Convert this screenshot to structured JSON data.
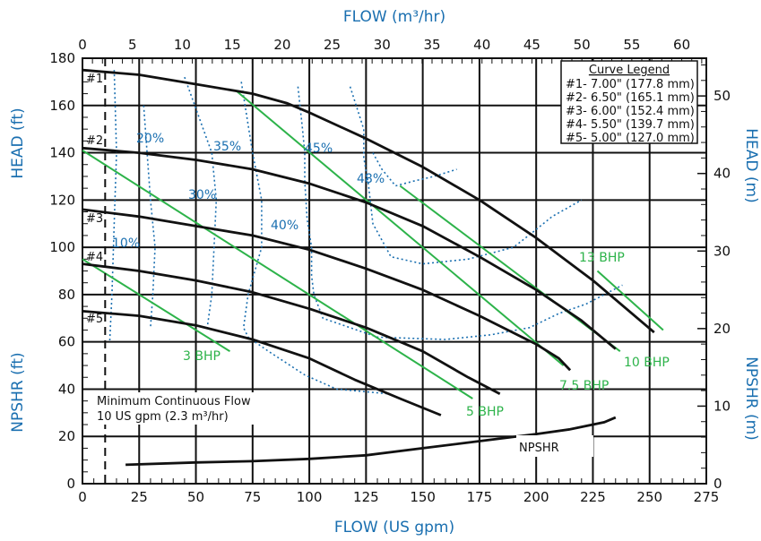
{
  "chart_data": {
    "type": "line",
    "title": "",
    "xlabel_top": "FLOW (m³/hr)",
    "xlabel_bottom": "FLOW (US gpm)",
    "ylabel_left_head": "HEAD (ft)",
    "ylabel_left_npshr": "NPSHR (ft)",
    "ylabel_right_head": "HEAD (m)",
    "ylabel_right_npshr": "NPSHR (m)",
    "xlim": [
      0,
      275
    ],
    "ylim": [
      0,
      180
    ],
    "x_ticks": [
      "0",
      "25",
      "50",
      "75",
      "100",
      "125",
      "150",
      "175",
      "200",
      "225",
      "250",
      "275"
    ],
    "y_ticks": [
      "0",
      "20",
      "40",
      "60",
      "80",
      "100",
      "120",
      "140",
      "160",
      "180"
    ],
    "x_top_ticks": [
      "0",
      "5",
      "10",
      "15",
      "20",
      "25",
      "30",
      "35",
      "40",
      "45",
      "50",
      "55",
      "60"
    ],
    "y_right_ticks": [
      "0",
      "10",
      "20",
      "30",
      "40",
      "50"
    ],
    "grid": true,
    "legend": {
      "title": "Curve Legend",
      "placement": "top-right",
      "entries": [
        "#1- 7.00\" (177.8 mm)",
        "#2- 6.50\" (165.1 mm)",
        "#3- 6.00\" (152.4 mm)",
        "#4- 5.50\" (139.7 mm)",
        "#5- 5.00\" (127.0 mm)"
      ]
    },
    "impeller_curves": [
      {
        "label": "#1",
        "points": [
          [
            0,
            175
          ],
          [
            25,
            173
          ],
          [
            50,
            169
          ],
          [
            75,
            165
          ],
          [
            90,
            161
          ],
          [
            100,
            157
          ],
          [
            125,
            146
          ],
          [
            150,
            134
          ],
          [
            175,
            120
          ],
          [
            200,
            104
          ],
          [
            225,
            86
          ],
          [
            252,
            64
          ]
        ]
      },
      {
        "label": "#2",
        "points": [
          [
            0,
            142
          ],
          [
            25,
            140
          ],
          [
            50,
            137
          ],
          [
            75,
            133
          ],
          [
            100,
            127
          ],
          [
            125,
            119
          ],
          [
            150,
            109
          ],
          [
            175,
            96
          ],
          [
            200,
            82
          ],
          [
            220,
            69
          ],
          [
            235,
            57
          ]
        ]
      },
      {
        "label": "#3",
        "points": [
          [
            0,
            116
          ],
          [
            25,
            113
          ],
          [
            50,
            109
          ],
          [
            75,
            105
          ],
          [
            100,
            99
          ],
          [
            125,
            91
          ],
          [
            150,
            82
          ],
          [
            175,
            71
          ],
          [
            200,
            59
          ],
          [
            210,
            53
          ],
          [
            215,
            48
          ]
        ]
      },
      {
        "label": "#4",
        "points": [
          [
            0,
            93
          ],
          [
            25,
            90
          ],
          [
            50,
            86
          ],
          [
            75,
            81
          ],
          [
            100,
            74
          ],
          [
            125,
            66
          ],
          [
            150,
            56
          ],
          [
            170,
            45
          ],
          [
            184,
            38
          ]
        ]
      },
      {
        "label": "#5",
        "points": [
          [
            0,
            73
          ],
          [
            25,
            71
          ],
          [
            50,
            67
          ],
          [
            75,
            61
          ],
          [
            100,
            53
          ],
          [
            120,
            44
          ],
          [
            140,
            36
          ],
          [
            158,
            29
          ]
        ]
      }
    ],
    "npshr_curve": {
      "label": "NPSHR",
      "points": [
        [
          19,
          8
        ],
        [
          50,
          9
        ],
        [
          75,
          9.5
        ],
        [
          100,
          10.5
        ],
        [
          125,
          12
        ],
        [
          150,
          15
        ],
        [
          175,
          18
        ],
        [
          200,
          21
        ],
        [
          215,
          23
        ],
        [
          230,
          26
        ],
        [
          235,
          28
        ]
      ]
    },
    "bhp_lines": [
      {
        "label": "3 BHP",
        "points": [
          [
            0,
            95
          ],
          [
            65,
            56
          ]
        ]
      },
      {
        "label": "5 BHP",
        "points": [
          [
            0,
            141
          ],
          [
            172,
            36
          ]
        ]
      },
      {
        "label": "7.5 BHP",
        "points": [
          [
            68,
            166
          ],
          [
            212,
            50
          ]
        ]
      },
      {
        "label": "10 BHP",
        "points": [
          [
            140,
            126
          ],
          [
            237,
            56
          ]
        ]
      },
      {
        "label": "13 BHP",
        "points": [
          [
            227,
            90
          ],
          [
            256,
            65
          ]
        ]
      }
    ],
    "efficiency_labels": [
      "10%",
      "20%",
      "30%",
      "35%",
      "40%",
      "45%",
      "48%"
    ],
    "efficiency_contours": [
      {
        "points": [
          [
            14,
            175
          ],
          [
            15,
            140
          ],
          [
            14,
            110
          ],
          [
            13,
            80
          ],
          [
            12,
            60
          ]
        ]
      },
      {
        "points": [
          [
            27,
            160
          ],
          [
            30,
            120
          ],
          [
            32,
            100
          ],
          [
            31,
            80
          ],
          [
            30,
            66
          ]
        ]
      },
      {
        "points": [
          [
            45,
            172
          ],
          [
            57,
            140
          ],
          [
            59,
            120
          ],
          [
            58,
            100
          ],
          [
            57,
            80
          ],
          [
            55,
            66
          ]
        ]
      },
      {
        "points": [
          [
            70,
            170
          ],
          [
            75,
            140
          ],
          [
            79,
            120
          ],
          [
            79,
            100
          ],
          [
            73,
            80
          ],
          [
            71,
            66
          ],
          [
            73,
            62
          ],
          [
            82,
            56
          ],
          [
            98,
            46
          ],
          [
            112,
            40
          ],
          [
            135,
            38
          ]
        ]
      },
      {
        "points": [
          [
            95,
            168
          ],
          [
            97,
            150
          ],
          [
            98,
            140
          ],
          [
            98,
            128
          ],
          [
            99,
            112
          ],
          [
            101,
            100
          ],
          [
            101,
            88
          ],
          [
            102,
            80
          ],
          [
            106,
            70
          ],
          [
            130,
            62
          ],
          [
            160,
            61
          ],
          [
            180,
            63
          ],
          [
            197,
            66
          ],
          [
            210,
            72
          ],
          [
            222,
            76
          ],
          [
            238,
            84
          ]
        ]
      },
      {
        "points": [
          [
            118,
            168
          ],
          [
            124,
            150
          ],
          [
            124,
            138
          ],
          [
            126,
            127
          ],
          [
            128,
            110
          ],
          [
            136,
            96
          ],
          [
            150,
            93
          ],
          [
            170,
            95
          ],
          [
            190,
            100
          ],
          [
            198,
            106
          ],
          [
            207,
            113
          ],
          [
            220,
            120
          ]
        ]
      },
      {
        "points": [
          [
            128,
            140
          ],
          [
            132,
            133
          ],
          [
            138,
            126
          ],
          [
            146,
            128
          ],
          [
            155,
            130
          ],
          [
            165,
            133
          ]
        ]
      }
    ],
    "annotations": [
      "Minimum Continuous Flow",
      "10 US gpm (2.3 m³/hr)"
    ],
    "min_flow_x": 10
  }
}
